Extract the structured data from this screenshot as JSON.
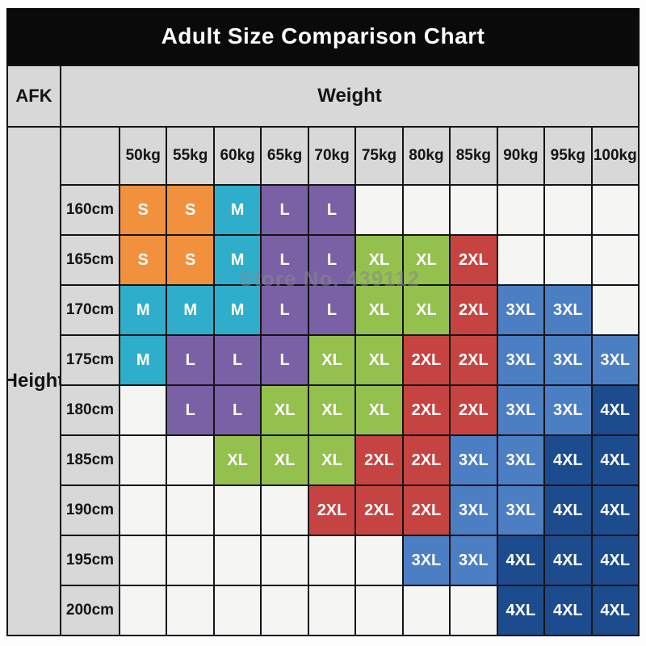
{
  "title": "Adult Size Comparison Chart",
  "corner_label": "AFK",
  "weight_label": "Weight",
  "height_label": "Height",
  "watermark": "Store No. 439112",
  "chart_data": {
    "type": "table",
    "title": "Adult Size Comparison Chart",
    "column_group_label": "Weight",
    "row_group_label": "Height",
    "columns": [
      "50kg",
      "55kg",
      "60kg",
      "65kg",
      "70kg",
      "75kg",
      "80kg",
      "85kg",
      "90kg",
      "95kg",
      "100kg"
    ],
    "rows": [
      "160cm",
      "165cm",
      "170cm",
      "175cm",
      "180cm",
      "185cm",
      "190cm",
      "195cm",
      "200cm"
    ],
    "matrix": [
      [
        "S",
        "S",
        "M",
        "L",
        "L",
        "",
        "",
        "",
        "",
        "",
        ""
      ],
      [
        "S",
        "S",
        "M",
        "L",
        "L",
        "XL",
        "XL",
        "2XL",
        "",
        "",
        ""
      ],
      [
        "M",
        "M",
        "M",
        "L",
        "L",
        "XL",
        "XL",
        "2XL",
        "3XL",
        "3XL",
        ""
      ],
      [
        "M",
        "L",
        "L",
        "L",
        "XL",
        "XL",
        "2XL",
        "2XL",
        "3XL",
        "3XL",
        "3XL"
      ],
      [
        "",
        "L",
        "L",
        "XL",
        "XL",
        "XL",
        "2XL",
        "2XL",
        "3XL",
        "3XL",
        "4XL"
      ],
      [
        "",
        "",
        "XL",
        "XL",
        "XL",
        "2XL",
        "2XL",
        "3XL",
        "3XL",
        "4XL",
        "4XL"
      ],
      [
        "",
        "",
        "",
        "",
        "2XL",
        "2XL",
        "2XL",
        "3XL",
        "3XL",
        "4XL",
        "4XL"
      ],
      [
        "",
        "",
        "",
        "",
        "",
        "",
        "3XL",
        "3XL",
        "4XL",
        "4XL",
        "4XL"
      ],
      [
        "",
        "",
        "",
        "",
        "",
        "",
        "",
        "",
        "4XL",
        "4XL",
        "4XL"
      ]
    ],
    "size_colors": {
      "S": "#F2913D",
      "M": "#2FAECB",
      "L": "#7A60A4",
      "XL": "#94C04D",
      "2XL": "#C54441",
      "3XL": "#4C7EC3",
      "4XL": "#1D4C8E"
    },
    "header_bg": "#d8d8d8",
    "empty_cell_bg": "#f5f5f4",
    "grid_line_color": "#141414",
    "title_bg": "#0a0a0a"
  }
}
